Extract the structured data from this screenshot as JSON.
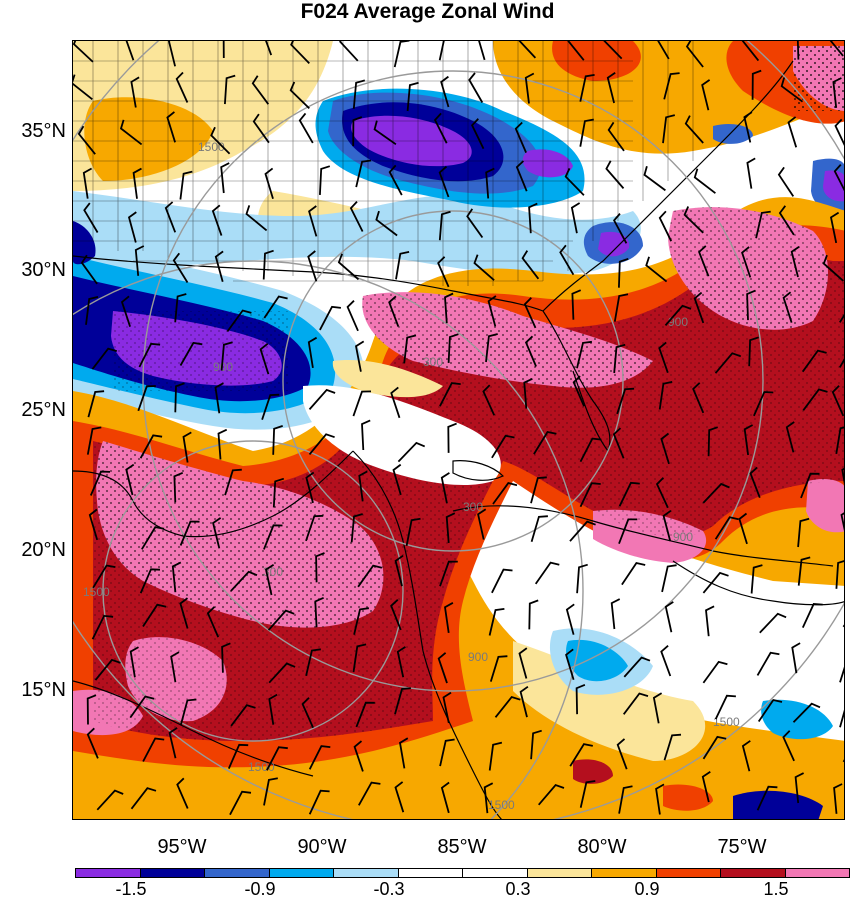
{
  "title": "F024 Average Zonal Wind",
  "map": {
    "lat_labels": [
      "35°N",
      "30°N",
      "25°N",
      "20°N",
      "15°N"
    ],
    "lon_labels": [
      "95°W",
      "90°W",
      "85°W",
      "80°W",
      "75°W"
    ],
    "range_ring_labels": [
      "300",
      "300",
      "300",
      "900",
      "900",
      "900",
      "900",
      "1500",
      "1500",
      "1500",
      "1500",
      "1500"
    ]
  },
  "colorbar": {
    "colors": [
      "#8a2be2",
      "#000099",
      "#3366cc",
      "#00aaee",
      "#aaddf7",
      "#ffffff",
      "#ffffff",
      "#fbe59a",
      "#f7a800",
      "#f04000",
      "#b40f1e",
      "#f277b4"
    ],
    "tick_labels": [
      "-1.5",
      "-0.9",
      "-0.3",
      "0.3",
      "0.9",
      "1.5"
    ]
  },
  "palette": {
    "frame": "#000000",
    "ring": "#9a9a9a",
    "border": "#000000"
  }
}
